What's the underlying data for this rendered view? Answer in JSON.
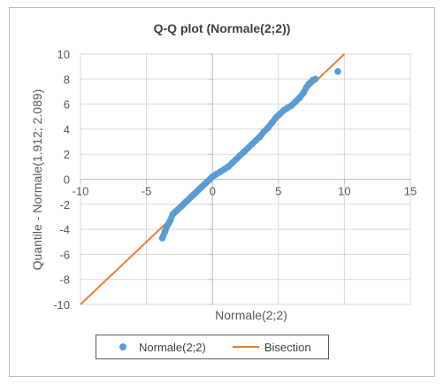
{
  "chart_data": {
    "type": "scatter",
    "title": "Q-Q plot (Normale(2;2))",
    "xlabel": "Normale(2;2)",
    "ylabel": "Quantile - Normale(1.912; 2.089)",
    "xlim": [
      -10,
      15
    ],
    "ylim": [
      -10,
      10
    ],
    "x_ticks": [
      -10,
      -5,
      0,
      5,
      10,
      15
    ],
    "y_ticks": [
      -10,
      -8,
      -6,
      -4,
      -2,
      0,
      2,
      4,
      6,
      8,
      10
    ],
    "grid": true,
    "legend_position": "bottom",
    "series": [
      {
        "name": "Normale(2;2)",
        "kind": "scatter",
        "color": "#5b9bd5",
        "points": [
          [
            -3.8,
            -4.7
          ],
          [
            -3.6,
            -4.2
          ],
          [
            -3.5,
            -3.9
          ],
          [
            -3.3,
            -3.5
          ],
          [
            -3.2,
            -3.3
          ],
          [
            -3.0,
            -2.8
          ],
          [
            -2.8,
            -2.6
          ],
          [
            -2.6,
            -2.4
          ],
          [
            -2.4,
            -2.2
          ],
          [
            -2.2,
            -2.0
          ],
          [
            -2.0,
            -1.8
          ],
          [
            -1.8,
            -1.6
          ],
          [
            -1.6,
            -1.4
          ],
          [
            -1.4,
            -1.2
          ],
          [
            -1.2,
            -1.0
          ],
          [
            -1.0,
            -0.8
          ],
          [
            -0.8,
            -0.6
          ],
          [
            -0.6,
            -0.4
          ],
          [
            -0.4,
            -0.2
          ],
          [
            -0.2,
            0.0
          ],
          [
            0.0,
            0.2
          ],
          [
            0.3,
            0.4
          ],
          [
            0.6,
            0.6
          ],
          [
            0.9,
            0.8
          ],
          [
            1.2,
            1.0
          ],
          [
            1.5,
            1.3
          ],
          [
            1.8,
            1.6
          ],
          [
            2.1,
            1.9
          ],
          [
            2.4,
            2.2
          ],
          [
            2.7,
            2.5
          ],
          [
            3.0,
            2.8
          ],
          [
            3.3,
            3.1
          ],
          [
            3.6,
            3.4
          ],
          [
            3.9,
            3.8
          ],
          [
            4.2,
            4.1
          ],
          [
            4.5,
            4.5
          ],
          [
            4.8,
            4.9
          ],
          [
            5.1,
            5.2
          ],
          [
            5.4,
            5.5
          ],
          [
            5.7,
            5.7
          ],
          [
            6.0,
            5.9
          ],
          [
            6.3,
            6.2
          ],
          [
            6.6,
            6.5
          ],
          [
            6.9,
            6.9
          ],
          [
            7.1,
            7.3
          ],
          [
            7.3,
            7.6
          ],
          [
            7.6,
            7.9
          ],
          [
            7.8,
            8.0
          ],
          [
            9.5,
            8.6
          ]
        ]
      },
      {
        "name": "Bisection",
        "kind": "line",
        "color": "#ed7d31",
        "points": [
          [
            -10,
            -10
          ],
          [
            10,
            10
          ]
        ]
      }
    ]
  }
}
